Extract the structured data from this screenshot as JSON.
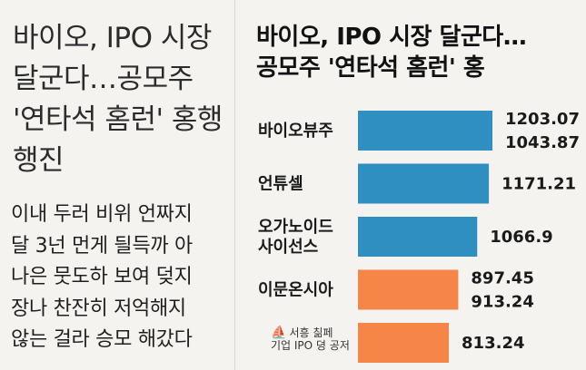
{
  "left": {
    "title": "바이오, IPO 시장\n달군다…공모주\n'연타석 홈런' 홍행\n행진",
    "body": "이내 두러 비위 언짜지\n달 3넌 먼게 딀득까 아\n나은 뭇도하 보여 덪지\n장나 찬잔히 저억해지\n않는 걸라 승모 해갔다"
  },
  "right": {
    "title": "바이오, IPO 시장 달군다…\n공모주 '연타석 홈런' 홍"
  },
  "colors": {
    "blue": "#2e8fc0",
    "orange": "#f58648"
  },
  "logo": {
    "mark": "⛵",
    "line1": "서흥 칢페",
    "line2": "기업 IPO 뎡 공저"
  },
  "chart_data": {
    "type": "bar",
    "orientation": "horizontal",
    "categories": [
      "바이오뷰주",
      "언튜셀",
      "오가노이드\n사이선스",
      "이문온시아",
      ""
    ],
    "values": [
      1203.07,
      1171.21,
      1066.9,
      897.45,
      813.24
    ],
    "value_labels": [
      "1203.07\n1043.87",
      "1171.21",
      "1066.9",
      "897.45\n913.24",
      "813.24"
    ],
    "bar_colors": [
      "blue",
      "blue",
      "blue",
      "orange",
      "orange"
    ],
    "title": "바이오, IPO 시장 달군다… 공모주 '연타석 홈런' 홍",
    "xlabel": "",
    "ylabel": ""
  }
}
